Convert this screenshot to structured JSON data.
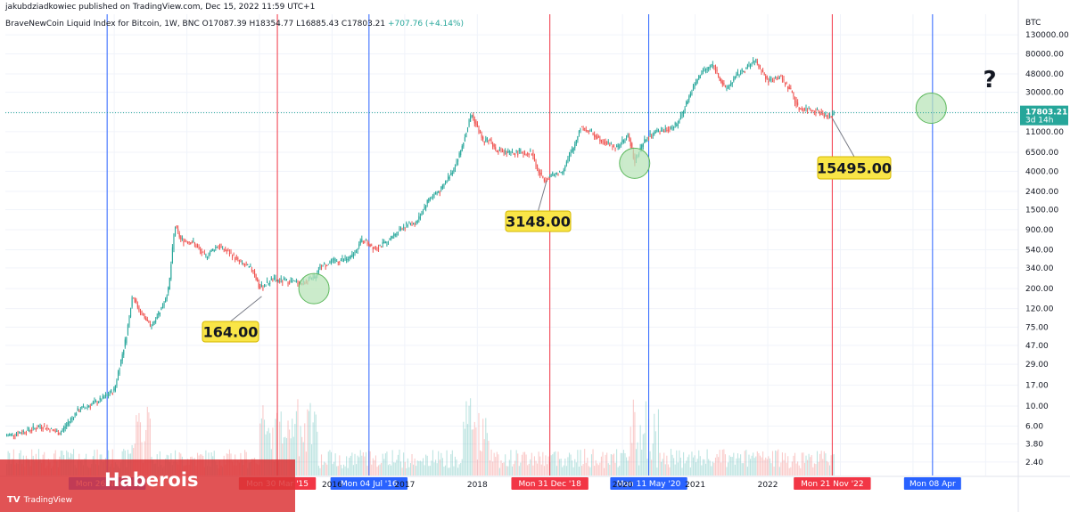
{
  "header": {
    "published": "jakubdziadkowiec published on TradingView.com, Dec 15, 2022 11:59 UTC+1",
    "symbol": "BraveNewCoin Liquid Index for Bitcoin, 1W, BNC",
    "ohlc": "O17087.39 H18354.77 L16885.43 C17803.21",
    "change": "+707.76 (+4.14%)"
  },
  "currency": "BTC",
  "price_badge": {
    "price": "17803.21",
    "countdown": "3d 14h"
  },
  "watermark": {
    "brand": "Haberois",
    "platform": "TradingView",
    "logo": "TV"
  },
  "question_mark": "?",
  "colors": {
    "up": "#26a69a",
    "down": "#ef5350",
    "blue_line": "#2962ff",
    "red_line": "#f23645",
    "callout": "#f9e547",
    "circle": "#b9e4b9",
    "price_line": "#26a69a"
  },
  "chart_data": {
    "type": "candlestick",
    "title": "BraveNewCoin Liquid Index for Bitcoin, 1W, BNC",
    "y_scale": "log",
    "y_ticks": [
      2.4,
      3.8,
      6.0,
      10.0,
      17.0,
      29.0,
      47.0,
      75.0,
      120.0,
      200.0,
      340.0,
      540.0,
      900.0,
      1500.0,
      2400.0,
      4000.0,
      6500.0,
      11000.0,
      18000.0,
      30000.0,
      48000.0,
      80000.0,
      130000.0
    ],
    "x_ticks": [
      "2016",
      "2017",
      "2018",
      "2020",
      "2021",
      "2022"
    ],
    "x_range": [
      "2011-06",
      "2025-06"
    ],
    "date_markers": [
      {
        "label": "Mon 26 Nov '12",
        "date": "2012-11-26",
        "color": "blue"
      },
      {
        "label": "Mon 30 Mar '15",
        "date": "2015-03-30",
        "color": "red"
      },
      {
        "label": "Mon 04 Jul '16",
        "date": "2016-07-04",
        "color": "blue"
      },
      {
        "label": "Mon 31 Dec '18",
        "date": "2018-12-31",
        "color": "red"
      },
      {
        "label": "Mon 11 May '20",
        "date": "2020-05-11",
        "color": "blue"
      },
      {
        "label": "Mon 21 Nov '22",
        "date": "2022-11-21",
        "color": "red"
      },
      {
        "label": "Mon 08 Apr",
        "date": "2024-04-08",
        "color": "blue"
      }
    ],
    "price_path": [
      [
        "2011-06",
        4.5
      ],
      [
        "2011-09",
        5
      ],
      [
        "2012-01",
        6
      ],
      [
        "2012-04",
        5
      ],
      [
        "2012-07",
        9
      ],
      [
        "2012-10",
        11
      ],
      [
        "2012-11",
        12
      ],
      [
        "2013-01",
        15
      ],
      [
        "2013-03",
        60
      ],
      [
        "2013-04",
        170
      ],
      [
        "2013-05",
        120
      ],
      [
        "2013-07",
        75
      ],
      [
        "2013-09",
        130
      ],
      [
        "2013-10",
        200
      ],
      [
        "2013-11",
        1000
      ],
      [
        "2013-12",
        700
      ],
      [
        "2014-02",
        650
      ],
      [
        "2014-04",
        450
      ],
      [
        "2014-06",
        600
      ],
      [
        "2014-08",
        500
      ],
      [
        "2014-10",
        380
      ],
      [
        "2014-12",
        320
      ],
      [
        "2015-01",
        200
      ],
      [
        "2015-03",
        250
      ],
      [
        "2015-06",
        240
      ],
      [
        "2015-08",
        230
      ],
      [
        "2015-10",
        260
      ],
      [
        "2015-11",
        350
      ],
      [
        "2016-01",
        400
      ],
      [
        "2016-04",
        430
      ],
      [
        "2016-06",
        700
      ],
      [
        "2016-08",
        570
      ],
      [
        "2016-10",
        640
      ],
      [
        "2016-12",
        900
      ],
      [
        "2017-01",
        1000
      ],
      [
        "2017-03",
        1100
      ],
      [
        "2017-05",
        2000
      ],
      [
        "2017-07",
        2500
      ],
      [
        "2017-09",
        4200
      ],
      [
        "2017-10",
        6000
      ],
      [
        "2017-11",
        10000
      ],
      [
        "2017-12",
        17500
      ],
      [
        "2018-02",
        8500
      ],
      [
        "2018-03",
        9000
      ],
      [
        "2018-04",
        7000
      ],
      [
        "2018-06",
        6300
      ],
      [
        "2018-08",
        6500
      ],
      [
        "2018-10",
        6400
      ],
      [
        "2018-11",
        4000
      ],
      [
        "2018-12",
        3300
      ],
      [
        "2019-03",
        4000
      ],
      [
        "2019-05",
        7500
      ],
      [
        "2019-06",
        12500
      ],
      [
        "2019-08",
        10500
      ],
      [
        "2019-10",
        8500
      ],
      [
        "2019-12",
        7200
      ],
      [
        "2020-02",
        10000
      ],
      [
        "2020-03",
        5200
      ],
      [
        "2020-05",
        9500
      ],
      [
        "2020-07",
        11000
      ],
      [
        "2020-10",
        13000
      ],
      [
        "2020-12",
        27000
      ],
      [
        "2021-02",
        50000
      ],
      [
        "2021-04",
        60000
      ],
      [
        "2021-06",
        32000
      ],
      [
        "2021-08",
        47000
      ],
      [
        "2021-11",
        67000
      ],
      [
        "2022-01",
        40000
      ],
      [
        "2022-03",
        45000
      ],
      [
        "2022-05",
        30000
      ],
      [
        "2022-06",
        20000
      ],
      [
        "2022-09",
        19000
      ],
      [
        "2022-11",
        16000
      ],
      [
        "2022-12",
        17803
      ]
    ],
    "annotations": [
      {
        "label": "164.00",
        "date": "2015-01-12",
        "value": 164
      },
      {
        "label": "3148.00",
        "date": "2018-12-15",
        "value": 3148
      },
      {
        "label": "15495.00",
        "date": "2022-11-21",
        "value": 15495
      }
    ],
    "circles": [
      {
        "date": "2015-10",
        "value": 200
      },
      {
        "date": "2020-03",
        "value": 4900
      },
      {
        "date": "2024-04",
        "value": 20000
      }
    ],
    "last_price": 17803.21
  }
}
